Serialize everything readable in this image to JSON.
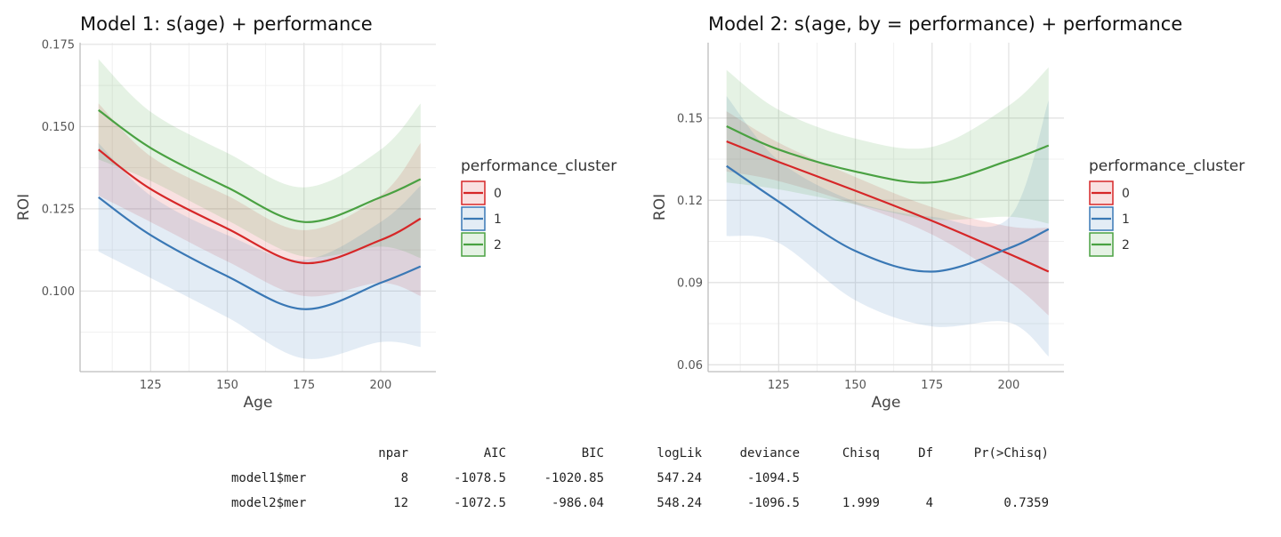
{
  "legend_title": "performance_cluster",
  "chart_data": [
    {
      "type": "line",
      "title": "Model 1: s(age) + performance",
      "xlabel": "Age",
      "ylabel": "ROI",
      "xlim": [
        102,
        218
      ],
      "ylim": [
        0.0755,
        0.1755
      ],
      "x_ticks": [
        125,
        150,
        175,
        200
      ],
      "y_ticks": [
        0.1,
        0.125,
        0.15,
        0.175
      ],
      "y_tick_labels": [
        "0.100",
        "0.125",
        "0.150",
        "0.175"
      ],
      "grid": true,
      "legend": "right",
      "series": [
        {
          "name": "0",
          "color": "#d62728",
          "x": [
            108,
            125,
            150,
            175,
            200,
            213
          ],
          "fit": [
            0.143,
            0.131,
            0.119,
            0.1085,
            0.1155,
            0.122
          ],
          "lower": [
            0.129,
            0.121,
            0.109,
            0.0985,
            0.1025,
            0.0985
          ],
          "upper": [
            0.157,
            0.141,
            0.129,
            0.1185,
            0.129,
            0.145
          ]
        },
        {
          "name": "1",
          "color": "#3a78b5",
          "x": [
            108,
            125,
            150,
            175,
            200,
            213
          ],
          "fit": [
            0.1285,
            0.117,
            0.1045,
            0.0945,
            0.1025,
            0.1075
          ],
          "lower": [
            0.112,
            0.104,
            0.092,
            0.0795,
            0.0845,
            0.083
          ],
          "upper": [
            0.145,
            0.129,
            0.117,
            0.1095,
            0.121,
            0.132
          ]
        },
        {
          "name": "2",
          "color": "#4aa142",
          "x": [
            108,
            125,
            150,
            175,
            200,
            213
          ],
          "fit": [
            0.155,
            0.1435,
            0.1315,
            0.121,
            0.1285,
            0.134
          ],
          "lower": [
            0.14,
            0.1335,
            0.1215,
            0.1105,
            0.1135,
            0.11
          ],
          "upper": [
            0.1705,
            0.1545,
            0.142,
            0.1315,
            0.143,
            0.157
          ]
        }
      ]
    },
    {
      "type": "line",
      "title": "Model 2: s(age, by = performance) + performance",
      "xlabel": "Age",
      "ylabel": "ROI",
      "xlim": [
        102,
        218
      ],
      "ylim": [
        0.0575,
        0.1775
      ],
      "x_ticks": [
        125,
        150,
        175,
        200
      ],
      "y_ticks": [
        0.06,
        0.09,
        0.12,
        0.15
      ],
      "y_tick_labels": [
        "0.06",
        "0.09",
        "0.12",
        "0.15"
      ],
      "grid": true,
      "legend": "right",
      "series": [
        {
          "name": "0",
          "color": "#d62728",
          "x": [
            108,
            125,
            150,
            175,
            200,
            213
          ],
          "fit": [
            0.1415,
            0.134,
            0.1235,
            0.1125,
            0.1005,
            0.094
          ],
          "lower": [
            0.1305,
            0.127,
            0.1185,
            0.1075,
            0.0905,
            0.078
          ],
          "upper": [
            0.1525,
            0.141,
            0.1285,
            0.1175,
            0.1105,
            0.11
          ]
        },
        {
          "name": "1",
          "color": "#3a78b5",
          "x": [
            108,
            125,
            150,
            175,
            200,
            213
          ],
          "fit": [
            0.1325,
            0.1195,
            0.1015,
            0.094,
            0.1025,
            0.1095
          ],
          "lower": [
            0.107,
            0.1045,
            0.0835,
            0.074,
            0.0755,
            0.063
          ],
          "upper": [
            0.158,
            0.1345,
            0.1195,
            0.114,
            0.1135,
            0.1565
          ]
        },
        {
          "name": "2",
          "color": "#4aa142",
          "x": [
            108,
            125,
            150,
            175,
            200,
            213
          ],
          "fit": [
            0.147,
            0.1385,
            0.1305,
            0.1265,
            0.1345,
            0.14
          ],
          "lower": [
            0.1265,
            0.124,
            0.1185,
            0.113,
            0.114,
            0.1115
          ],
          "upper": [
            0.1675,
            0.153,
            0.1425,
            0.1395,
            0.1545,
            0.1685
          ]
        }
      ]
    }
  ],
  "anova_table": {
    "headers": [
      "npar",
      "AIC",
      "BIC",
      "logLik",
      "deviance",
      "Chisq",
      "Df",
      "Pr(>Chisq)"
    ],
    "rows": [
      {
        "label": "model1$mer",
        "values": [
          "8",
          "-1078.5",
          "-1020.85",
          "547.24",
          "-1094.5",
          "",
          "",
          ""
        ]
      },
      {
        "label": "model2$mer",
        "values": [
          "12",
          "-1072.5",
          "-986.04",
          "548.24",
          "-1096.5",
          "1.999",
          "4",
          "0.7359"
        ]
      }
    ]
  }
}
